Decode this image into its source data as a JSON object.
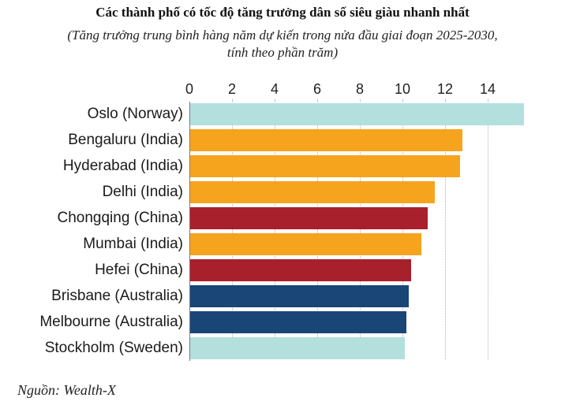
{
  "header": {
    "title": "Các thành phố có tốc độ tăng trưởng dân số siêu giàu nhanh nhất",
    "subtitle_line1": "(Tăng trưởng trung bình hàng năm dự kiến trong nửa đầu giai đoạn 2025-2030,",
    "subtitle_line2": "tính theo phần trăm)"
  },
  "source": "Nguồn: Wealth-X",
  "colors": {
    "norway_sweden": "#b3e0dc",
    "india": "#f6a41e",
    "china": "#a8202b",
    "australia": "#1a4677",
    "axis": "#7a7a7a",
    "grid": "#b0b0b0"
  },
  "chart_data": {
    "type": "bar",
    "orientation": "horizontal",
    "title": "Các thành phố có tốc độ tăng trưởng dân số siêu giàu nhanh nhất",
    "subtitle": "(Tăng trưởng trung bình hàng năm dự kiến trong nửa đầu giai đoạn 2025-2030, tính theo phần trăm)",
    "xlabel": "",
    "ylabel": "",
    "xlim": [
      0,
      16
    ],
    "x_ticks": [
      "0",
      "2",
      "4",
      "6",
      "8",
      "10",
      "12",
      "14"
    ],
    "grid": true,
    "axis_position": "top",
    "categories": [
      "Oslo (Norway)",
      "Bengaluru (India)",
      "Hyderabad (India)",
      "Delhi (India)",
      "Chongqing (China)",
      "Mumbai (India)",
      "Hefei (China)",
      "Brisbane (Australia)",
      "Melbourne (Australia)",
      "Stockholm (Sweden)"
    ],
    "values": [
      15.7,
      12.8,
      12.7,
      11.5,
      11.2,
      10.9,
      10.4,
      10.3,
      10.2,
      10.1
    ],
    "bar_colors": [
      "#b3e0dc",
      "#f6a41e",
      "#f6a41e",
      "#f6a41e",
      "#a8202b",
      "#f6a41e",
      "#a8202b",
      "#1a4677",
      "#1a4677",
      "#b3e0dc"
    ],
    "source": "Nguồn: Wealth-X"
  }
}
